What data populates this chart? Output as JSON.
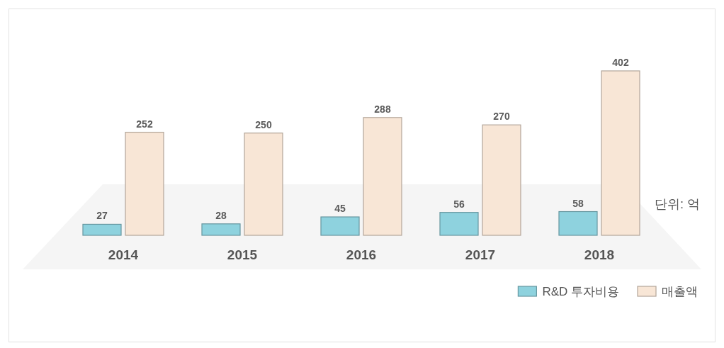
{
  "chart_data": {
    "type": "bar",
    "categories": [
      "2014",
      "2015",
      "2016",
      "2017",
      "2018"
    ],
    "series": [
      {
        "name": "R&D 투자비용",
        "color": "#8ed2de",
        "values": [
          27,
          28,
          45,
          56,
          58
        ]
      },
      {
        "name": "매출액",
        "color": "#f8e6d6",
        "values": [
          252,
          250,
          288,
          270,
          402
        ]
      }
    ],
    "data_labels": true,
    "legend": "bottom right",
    "annotations": [
      "단위: 억"
    ]
  }
}
